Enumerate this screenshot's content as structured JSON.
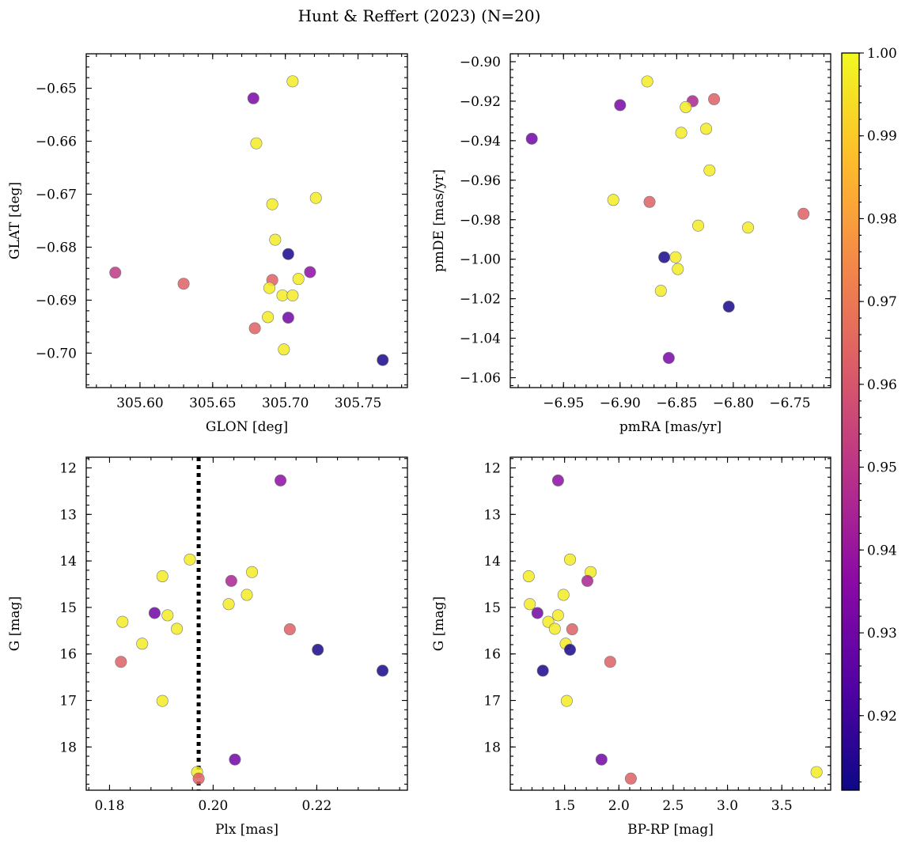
{
  "figure_title": "Hunt & Reffert (2023) (N=20)",
  "colormap": [
    "#0d0887",
    "#5302a3",
    "#8b0aa5",
    "#b83289",
    "#db5c68",
    "#f48849",
    "#febd2a",
    "#f0f921"
  ],
  "colorbar": {
    "min": 0.911,
    "max": 1.0,
    "ticks": [
      0.92,
      0.93,
      0.94,
      0.95,
      0.96,
      0.97,
      0.98,
      0.99,
      1.0
    ],
    "tick_labels": [
      "0.92",
      "0.93",
      "0.94",
      "0.95",
      "0.96",
      "0.97",
      "0.98",
      "0.99",
      "1.00"
    ]
  },
  "chart_data": [
    {
      "type": "scatter",
      "id": "glon-glat",
      "xlabel": "GLON [deg]",
      "ylabel": "GLAT [deg]",
      "xlim": [
        305.563,
        305.784
      ],
      "ylim": [
        -0.7065,
        -0.6435
      ],
      "xticks": [
        305.6,
        305.65,
        305.7,
        305.75
      ],
      "xtick_labels": [
        "305.60",
        "305.65",
        "305.70",
        "305.75"
      ],
      "yticks": [
        -0.65,
        -0.66,
        -0.67,
        -0.68,
        -0.69,
        -0.7
      ],
      "ytick_labels": [
        "−0.65",
        "−0.66",
        "−0.67",
        "−0.68",
        "−0.69",
        "−0.70"
      ],
      "inverted_y": false,
      "points": [
        {
          "x": 305.705,
          "y": -0.6487,
          "p": 0.997
        },
        {
          "x": 305.678,
          "y": -0.6519,
          "p": 0.932
        },
        {
          "x": 305.68,
          "y": -0.6604,
          "p": 0.997
        },
        {
          "x": 305.721,
          "y": -0.6707,
          "p": 0.997
        },
        {
          "x": 305.691,
          "y": -0.6719,
          "p": 0.997
        },
        {
          "x": 305.693,
          "y": -0.6786,
          "p": 0.997
        },
        {
          "x": 305.702,
          "y": -0.6813,
          "p": 0.913
        },
        {
          "x": 305.583,
          "y": -0.6848,
          "p": 0.951
        },
        {
          "x": 305.717,
          "y": -0.6847,
          "p": 0.937
        },
        {
          "x": 305.709,
          "y": -0.686,
          "p": 0.997
        },
        {
          "x": 305.691,
          "y": -0.6862,
          "p": 0.963
        },
        {
          "x": 305.63,
          "y": -0.6869,
          "p": 0.963
        },
        {
          "x": 305.689,
          "y": -0.6877,
          "p": 0.997
        },
        {
          "x": 305.698,
          "y": -0.6891,
          "p": 0.997
        },
        {
          "x": 305.705,
          "y": -0.6891,
          "p": 0.997
        },
        {
          "x": 305.688,
          "y": -0.6932,
          "p": 0.997
        },
        {
          "x": 305.702,
          "y": -0.6933,
          "p": 0.93
        },
        {
          "x": 305.679,
          "y": -0.6953,
          "p": 0.963
        },
        {
          "x": 305.699,
          "y": -0.6993,
          "p": 0.997
        },
        {
          "x": 305.767,
          "y": -0.7013,
          "p": 0.913
        }
      ]
    },
    {
      "type": "scatter",
      "id": "pmra-pmde",
      "xlabel": "pmRA [mas/yr]",
      "ylabel": "pmDE [mas/yr]",
      "xlim": [
        -6.997,
        -6.714
      ],
      "ylim": [
        -1.065,
        -0.896
      ],
      "xticks": [
        -6.95,
        -6.9,
        -6.85,
        -6.8,
        -6.75
      ],
      "xtick_labels": [
        "−6.95",
        "−6.90",
        "−6.85",
        "−6.80",
        "−6.75"
      ],
      "yticks": [
        -0.9,
        -0.92,
        -0.94,
        -0.96,
        -0.98,
        -1.0,
        -1.02,
        -1.04,
        -1.06
      ],
      "ytick_labels": [
        "−0.90",
        "−0.92",
        "−0.94",
        "−0.96",
        "−0.98",
        "−1.00",
        "−1.02",
        "−1.04",
        "−1.06"
      ],
      "inverted_y": false,
      "points": [
        {
          "x": -6.876,
          "y": -0.91,
          "p": 0.997
        },
        {
          "x": -6.817,
          "y": -0.919,
          "p": 0.963
        },
        {
          "x": -6.836,
          "y": -0.92,
          "p": 0.945
        },
        {
          "x": -6.9,
          "y": -0.922,
          "p": 0.932
        },
        {
          "x": -6.842,
          "y": -0.923,
          "p": 0.997
        },
        {
          "x": -6.824,
          "y": -0.934,
          "p": 0.997
        },
        {
          "x": -6.846,
          "y": -0.936,
          "p": 0.997
        },
        {
          "x": -6.978,
          "y": -0.939,
          "p": 0.93
        },
        {
          "x": -6.821,
          "y": -0.955,
          "p": 0.997
        },
        {
          "x": -6.906,
          "y": -0.97,
          "p": 0.997
        },
        {
          "x": -6.874,
          "y": -0.971,
          "p": 0.963
        },
        {
          "x": -6.738,
          "y": -0.977,
          "p": 0.963
        },
        {
          "x": -6.831,
          "y": -0.983,
          "p": 0.997
        },
        {
          "x": -6.787,
          "y": -0.984,
          "p": 0.997
        },
        {
          "x": -6.861,
          "y": -0.999,
          "p": 0.913
        },
        {
          "x": -6.851,
          "y": -0.999,
          "p": 0.997
        },
        {
          "x": -6.849,
          "y": -1.005,
          "p": 0.997
        },
        {
          "x": -6.864,
          "y": -1.016,
          "p": 0.997
        },
        {
          "x": -6.804,
          "y": -1.024,
          "p": 0.913
        },
        {
          "x": -6.857,
          "y": -1.05,
          "p": 0.932
        }
      ]
    },
    {
      "type": "scatter",
      "id": "plx-g",
      "xlabel": "Plx [mas]",
      "ylabel": "G [mag]",
      "xlim": [
        0.1755,
        0.2375
      ],
      "ylim": [
        18.93,
        11.77
      ],
      "xticks": [
        0.18,
        0.2,
        0.22
      ],
      "xtick_labels": [
        "0.18",
        "0.20",
        "0.22"
      ],
      "yticks": [
        12,
        13,
        14,
        15,
        16,
        17,
        18
      ],
      "ytick_labels": [
        "12",
        "13",
        "14",
        "15",
        "16",
        "17",
        "18"
      ],
      "inverted_y": true,
      "vline": {
        "x": 0.1972,
        "style": "dotted"
      },
      "points": [
        {
          "x": 0.213,
          "y": 12.27,
          "p": 0.937
        },
        {
          "x": 0.1955,
          "y": 13.97,
          "p": 0.997
        },
        {
          "x": 0.2075,
          "y": 14.24,
          "p": 0.997
        },
        {
          "x": 0.1902,
          "y": 14.33,
          "p": 0.997
        },
        {
          "x": 0.2035,
          "y": 14.43,
          "p": 0.945
        },
        {
          "x": 0.2065,
          "y": 14.73,
          "p": 0.997
        },
        {
          "x": 0.203,
          "y": 14.93,
          "p": 0.997
        },
        {
          "x": 0.1887,
          "y": 15.12,
          "p": 0.93
        },
        {
          "x": 0.1912,
          "y": 15.17,
          "p": 0.997
        },
        {
          "x": 0.1825,
          "y": 15.31,
          "p": 0.997
        },
        {
          "x": 0.193,
          "y": 15.46,
          "p": 0.997
        },
        {
          "x": 0.2148,
          "y": 15.47,
          "p": 0.963
        },
        {
          "x": 0.1863,
          "y": 15.78,
          "p": 0.997
        },
        {
          "x": 0.2202,
          "y": 15.91,
          "p": 0.913
        },
        {
          "x": 0.1822,
          "y": 16.17,
          "p": 0.963
        },
        {
          "x": 0.2327,
          "y": 16.36,
          "p": 0.913
        },
        {
          "x": 0.1902,
          "y": 17.01,
          "p": 0.997
        },
        {
          "x": 0.2042,
          "y": 18.27,
          "p": 0.93
        },
        {
          "x": 0.1969,
          "y": 18.54,
          "p": 0.997
        },
        {
          "x": 0.1972,
          "y": 18.68,
          "p": 0.963
        }
      ]
    },
    {
      "type": "scatter",
      "id": "bprp-g",
      "xlabel": "BP-RP [mag]",
      "ylabel": "G [mag]",
      "xlim": [
        1.0,
        3.95
      ],
      "ylim": [
        18.93,
        11.77
      ],
      "xticks": [
        1.5,
        2.0,
        2.5,
        3.0,
        3.5
      ],
      "xtick_labels": [
        "1.5",
        "2.0",
        "2.5",
        "3.0",
        "3.5"
      ],
      "yticks": [
        12,
        13,
        14,
        15,
        16,
        17,
        18
      ],
      "ytick_labels": [
        "12",
        "13",
        "14",
        "15",
        "16",
        "17",
        "18"
      ],
      "inverted_y": true,
      "points": [
        {
          "x": 1.44,
          "y": 12.27,
          "p": 0.937
        },
        {
          "x": 1.55,
          "y": 13.97,
          "p": 0.997
        },
        {
          "x": 1.74,
          "y": 14.24,
          "p": 0.997
        },
        {
          "x": 1.17,
          "y": 14.33,
          "p": 0.997
        },
        {
          "x": 1.71,
          "y": 14.43,
          "p": 0.945
        },
        {
          "x": 1.49,
          "y": 14.73,
          "p": 0.997
        },
        {
          "x": 1.18,
          "y": 14.93,
          "p": 0.997
        },
        {
          "x": 1.25,
          "y": 15.12,
          "p": 0.93
        },
        {
          "x": 1.44,
          "y": 15.17,
          "p": 0.997
        },
        {
          "x": 1.35,
          "y": 15.31,
          "p": 0.997
        },
        {
          "x": 1.41,
          "y": 15.46,
          "p": 0.997
        },
        {
          "x": 1.57,
          "y": 15.47,
          "p": 0.963
        },
        {
          "x": 1.51,
          "y": 15.78,
          "p": 0.997
        },
        {
          "x": 1.55,
          "y": 15.91,
          "p": 0.913
        },
        {
          "x": 1.92,
          "y": 16.17,
          "p": 0.963
        },
        {
          "x": 1.3,
          "y": 16.36,
          "p": 0.913
        },
        {
          "x": 1.52,
          "y": 17.01,
          "p": 0.997
        },
        {
          "x": 1.84,
          "y": 18.27,
          "p": 0.93
        },
        {
          "x": 3.82,
          "y": 18.54,
          "p": 0.997
        },
        {
          "x": 2.11,
          "y": 18.68,
          "p": 0.963
        }
      ]
    }
  ]
}
